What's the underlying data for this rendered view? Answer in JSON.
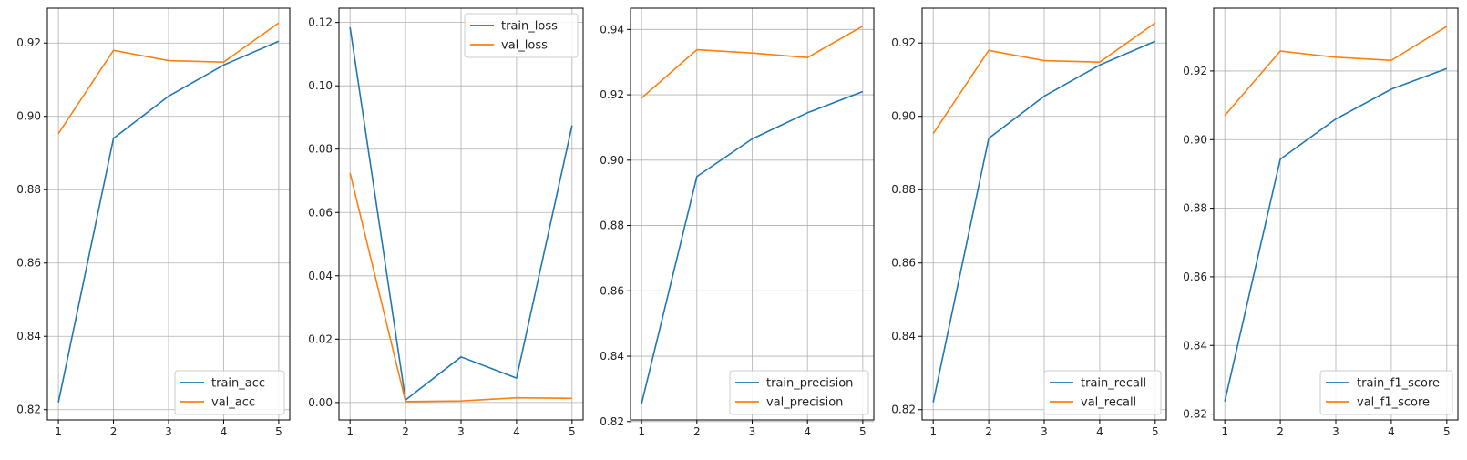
{
  "colors": {
    "train": "#1f77b4",
    "val": "#ff7f0e",
    "grid": "#b0b0b0",
    "axis": "#000000"
  },
  "chart_data": [
    {
      "type": "line",
      "x": [
        1,
        2,
        3,
        4,
        5
      ],
      "ylim": [
        0.8172,
        0.9295
      ],
      "yticks": [
        0.82,
        0.84,
        0.86,
        0.88,
        0.9,
        0.92
      ],
      "yticklabels": [
        "0.82",
        "0.84",
        "0.86",
        "0.88",
        "0.90",
        "0.92"
      ],
      "grid": true,
      "legend_position": "lower-right",
      "series": [
        {
          "name": "train_acc",
          "values": [
            0.822,
            0.894,
            0.9055,
            0.914,
            0.9205
          ]
        },
        {
          "name": "val_acc",
          "values": [
            0.8953,
            0.918,
            0.9152,
            0.9148,
            0.9255
          ]
        }
      ]
    },
    {
      "type": "line",
      "x": [
        1,
        2,
        3,
        4,
        5
      ],
      "ylim": [
        -0.0055,
        0.1245
      ],
      "yticks": [
        0.0,
        0.02,
        0.04,
        0.06,
        0.08,
        0.1,
        0.12
      ],
      "yticklabels": [
        "0.00",
        "0.02",
        "0.04",
        "0.06",
        "0.08",
        "0.10",
        "0.12"
      ],
      "grid": true,
      "legend_position": "upper-right",
      "series": [
        {
          "name": "train_loss",
          "values": [
            0.1185,
            0.0008,
            0.0144,
            0.0077,
            0.0875
          ]
        },
        {
          "name": "val_loss",
          "values": [
            0.0725,
            0.0003,
            0.0005,
            0.0015,
            0.0013
          ]
        }
      ]
    },
    {
      "type": "line",
      "x": [
        1,
        2,
        3,
        4,
        5
      ],
      "ylim": [
        0.8205,
        0.9465
      ],
      "yticks": [
        0.82,
        0.84,
        0.86,
        0.88,
        0.9,
        0.92,
        0.94
      ],
      "yticklabels": [
        "0.82",
        "0.84",
        "0.86",
        "0.88",
        "0.90",
        "0.92",
        "0.94"
      ],
      "grid": true,
      "legend_position": "lower-right",
      "series": [
        {
          "name": "train_precision",
          "values": [
            0.8255,
            0.895,
            0.9065,
            0.9145,
            0.921
          ]
        },
        {
          "name": "val_precision",
          "values": [
            0.919,
            0.9338,
            0.9328,
            0.9314,
            0.941
          ]
        }
      ]
    },
    {
      "type": "line",
      "x": [
        1,
        2,
        3,
        4,
        5
      ],
      "ylim": [
        0.8172,
        0.9295
      ],
      "yticks": [
        0.82,
        0.84,
        0.86,
        0.88,
        0.9,
        0.92
      ],
      "yticklabels": [
        "0.82",
        "0.84",
        "0.86",
        "0.88",
        "0.90",
        "0.92"
      ],
      "grid": true,
      "legend_position": "lower-right",
      "series": [
        {
          "name": "train_recall",
          "values": [
            0.822,
            0.894,
            0.9055,
            0.914,
            0.9205
          ]
        },
        {
          "name": "val_recall",
          "values": [
            0.8953,
            0.918,
            0.9152,
            0.9148,
            0.9255
          ]
        }
      ]
    },
    {
      "type": "line",
      "x": [
        1,
        2,
        3,
        4,
        5
      ],
      "ylim": [
        0.8183,
        0.9383
      ],
      "yticks": [
        0.82,
        0.84,
        0.86,
        0.88,
        0.9,
        0.92
      ],
      "yticklabels": [
        "0.82",
        "0.84",
        "0.86",
        "0.88",
        "0.90",
        "0.92"
      ],
      "grid": true,
      "legend_position": "lower-right",
      "series": [
        {
          "name": "train_f1_score",
          "values": [
            0.8237,
            0.8943,
            0.906,
            0.9147,
            0.9207
          ]
        },
        {
          "name": "val_f1_score",
          "values": [
            0.907,
            0.9258,
            0.924,
            0.9231,
            0.933
          ]
        }
      ]
    }
  ]
}
